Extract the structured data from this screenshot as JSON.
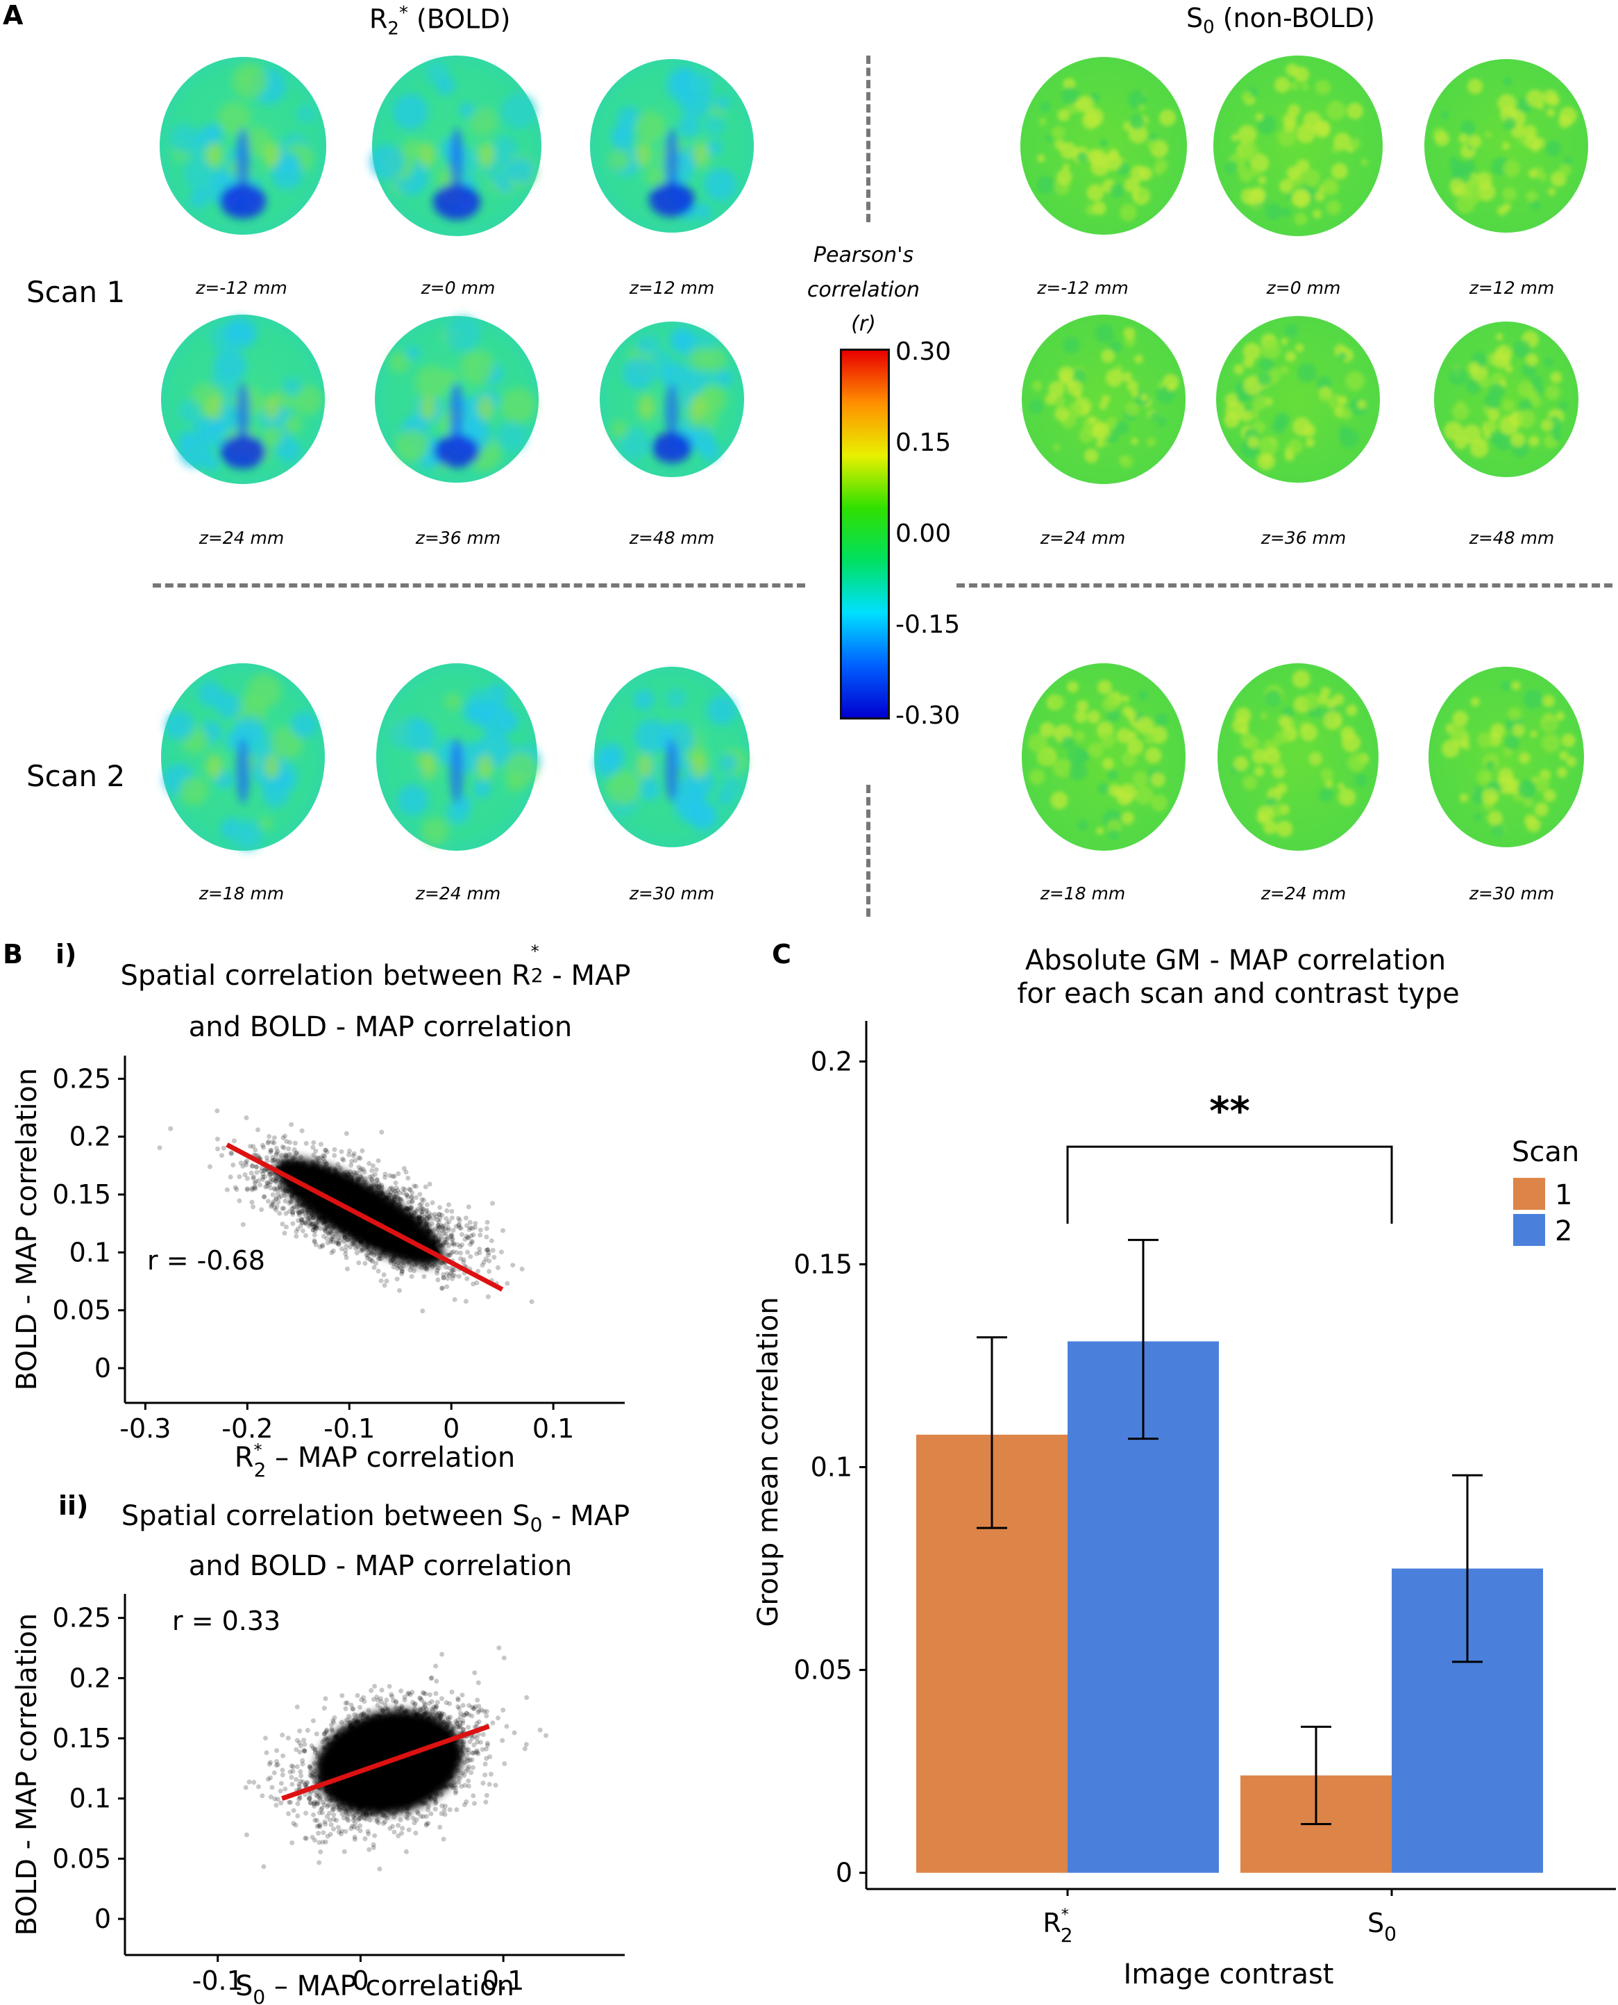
{
  "panel_a": {
    "letter": "A",
    "left_title": "R2* (BOLD)",
    "left_title_main": "R",
    "left_title_sub": "2",
    "left_title_sup": "*",
    "left_title_rest": " (BOLD)",
    "right_title_main": "S",
    "right_title_sub": "0",
    "right_title_rest": " (non-BOLD)",
    "scan1_label": "Scan 1",
    "scan2_label": "Scan 2",
    "scan1_z_labels": [
      "z=-12 mm",
      "z=0 mm",
      "z=12 mm"
    ],
    "scan1_z_labels_row2": [
      "z=24 mm",
      "z=36 mm",
      "z=48 mm"
    ],
    "scan2_z_labels": [
      "z=18 mm",
      "z=24 mm",
      "z=30 mm"
    ],
    "colorbar": {
      "title_line1": "Pearson's",
      "title_line2": "correlation",
      "title_line3": "(r)",
      "ticks": [
        "0.30",
        "0.15",
        "0.00",
        "-0.15",
        "-0.30"
      ],
      "range": [
        -0.3,
        0.3
      ],
      "colors": [
        "#0000d0",
        "#0060ff",
        "#00e0ff",
        "#00e060",
        "#30e000",
        "#e8f000",
        "#ff9000",
        "#e80000"
      ]
    },
    "map_colors": {
      "r2_base": "#33dd88",
      "r2_blue": "#1030e0",
      "s0_base": "#5cdc3c",
      "s0_yellow": "#bcea3a"
    }
  },
  "panel_b": {
    "letter": "B",
    "sub_i": "i)",
    "sub_ii": "ii)",
    "plot_i": {
      "title_line1": "Spatial correlation between R2* - MAP",
      "title_l1_pre": "Spatial correlation between R",
      "title_l1_sub": "2",
      "title_l1_sup": "*",
      "title_l1_post": " - MAP",
      "title_line2": "and BOLD - MAP correlation",
      "ylabel": "BOLD - MAP correlation",
      "xlabel_pre": "R",
      "xlabel_sub": "2",
      "xlabel_sup": "*",
      "xlabel_post": " – MAP correlation",
      "r_label": "r = -0.68"
    },
    "plot_ii": {
      "title_l1_pre": "Spatial correlation between S",
      "title_l1_sub": "0",
      "title_l1_post": " - MAP",
      "title_line2": "and BOLD - MAP correlation",
      "ylabel": "BOLD - MAP correlation",
      "xlabel_pre": "S",
      "xlabel_sub": "0",
      "xlabel_post": " – MAP correlation",
      "r_label": "r = 0.33"
    }
  },
  "panel_c": {
    "letter": "C",
    "title_line1": "Absolute GM - MAP correlation",
    "title_line2": "for each scan and contrast type",
    "ylabel": "Group mean correlation",
    "xlabel": "Image contrast",
    "significance": "**",
    "legend_title": "Scan",
    "scan_colors": [
      "#dd8448",
      "#4a80dc"
    ]
  },
  "chart_data": [
    {
      "type": "scatter",
      "title": "Spatial correlation between R2* - MAP and BOLD - MAP correlation",
      "xlabel": "R2* – MAP correlation",
      "ylabel": "BOLD - MAP correlation",
      "xlim": [
        -0.32,
        0.17
      ],
      "ylim": [
        -0.03,
        0.27
      ],
      "xticks": [
        -0.3,
        -0.2,
        -0.1,
        0,
        0.1
      ],
      "xtick_labels": [
        "-0.3",
        "-0.2",
        "-0.1",
        "0",
        "0.1"
      ],
      "yticks": [
        0,
        0.05,
        0.1,
        0.15,
        0.2,
        0.25
      ],
      "ytick_labels": [
        "0",
        "0.05",
        "0.1",
        "0.15",
        "0.2",
        "0.25"
      ],
      "annotation": "r = -0.68",
      "fit_line": {
        "x": [
          -0.22,
          0.05
        ],
        "y": [
          0.193,
          0.068
        ]
      },
      "cloud": {
        "center": [
          -0.09,
          0.135
        ],
        "spread": [
          0.09,
          0.045
        ],
        "r": -0.68
      }
    },
    {
      "type": "scatter",
      "title": "Spatial correlation between S0 - MAP and BOLD - MAP correlation",
      "xlabel": "S0 – MAP correlation",
      "ylabel": "BOLD - MAP correlation",
      "xlim": [
        -0.165,
        0.185
      ],
      "ylim": [
        -0.03,
        0.27
      ],
      "xticks": [
        -0.1,
        0,
        0.1
      ],
      "xtick_labels": [
        "-0.1",
        "0",
        "0.1"
      ],
      "yticks": [
        0,
        0.05,
        0.1,
        0.15,
        0.2,
        0.25
      ],
      "ytick_labels": [
        "0",
        "0.05",
        "0.1",
        "0.15",
        "0.2",
        "0.25"
      ],
      "annotation": "r = 0.33",
      "fit_line": {
        "x": [
          -0.055,
          0.09
        ],
        "y": [
          0.1,
          0.16
        ]
      },
      "cloud": {
        "center": [
          0.02,
          0.13
        ],
        "spread": [
          0.055,
          0.045
        ],
        "r": 0.33
      }
    },
    {
      "type": "bar",
      "title": "Absolute GM - MAP correlation for each scan and contrast type",
      "xlabel": "Image contrast",
      "ylabel": "Group mean correlation",
      "categories": [
        "R2*",
        "S0"
      ],
      "category_labels": [
        {
          "main": "R",
          "sub": "2",
          "sup": "*"
        },
        {
          "main": "S",
          "sub": "0",
          "sup": ""
        }
      ],
      "series": [
        {
          "name": "1",
          "values": [
            0.108,
            0.024
          ],
          "err_low": [
            0.085,
            0.012
          ],
          "err_high": [
            0.132,
            0.036
          ]
        },
        {
          "name": "2",
          "values": [
            0.131,
            0.075
          ],
          "err_low": [
            0.107,
            0.052
          ],
          "err_high": [
            0.156,
            0.098
          ]
        }
      ],
      "ylim": [
        -0.004,
        0.21
      ],
      "yticks": [
        0,
        0.05,
        0.1,
        0.15,
        0.2
      ],
      "ytick_labels": [
        "0",
        "0.05",
        "0.1",
        "0.15",
        "0.2"
      ],
      "legend_title": "Scan",
      "legend_position": "top-right"
    }
  ]
}
